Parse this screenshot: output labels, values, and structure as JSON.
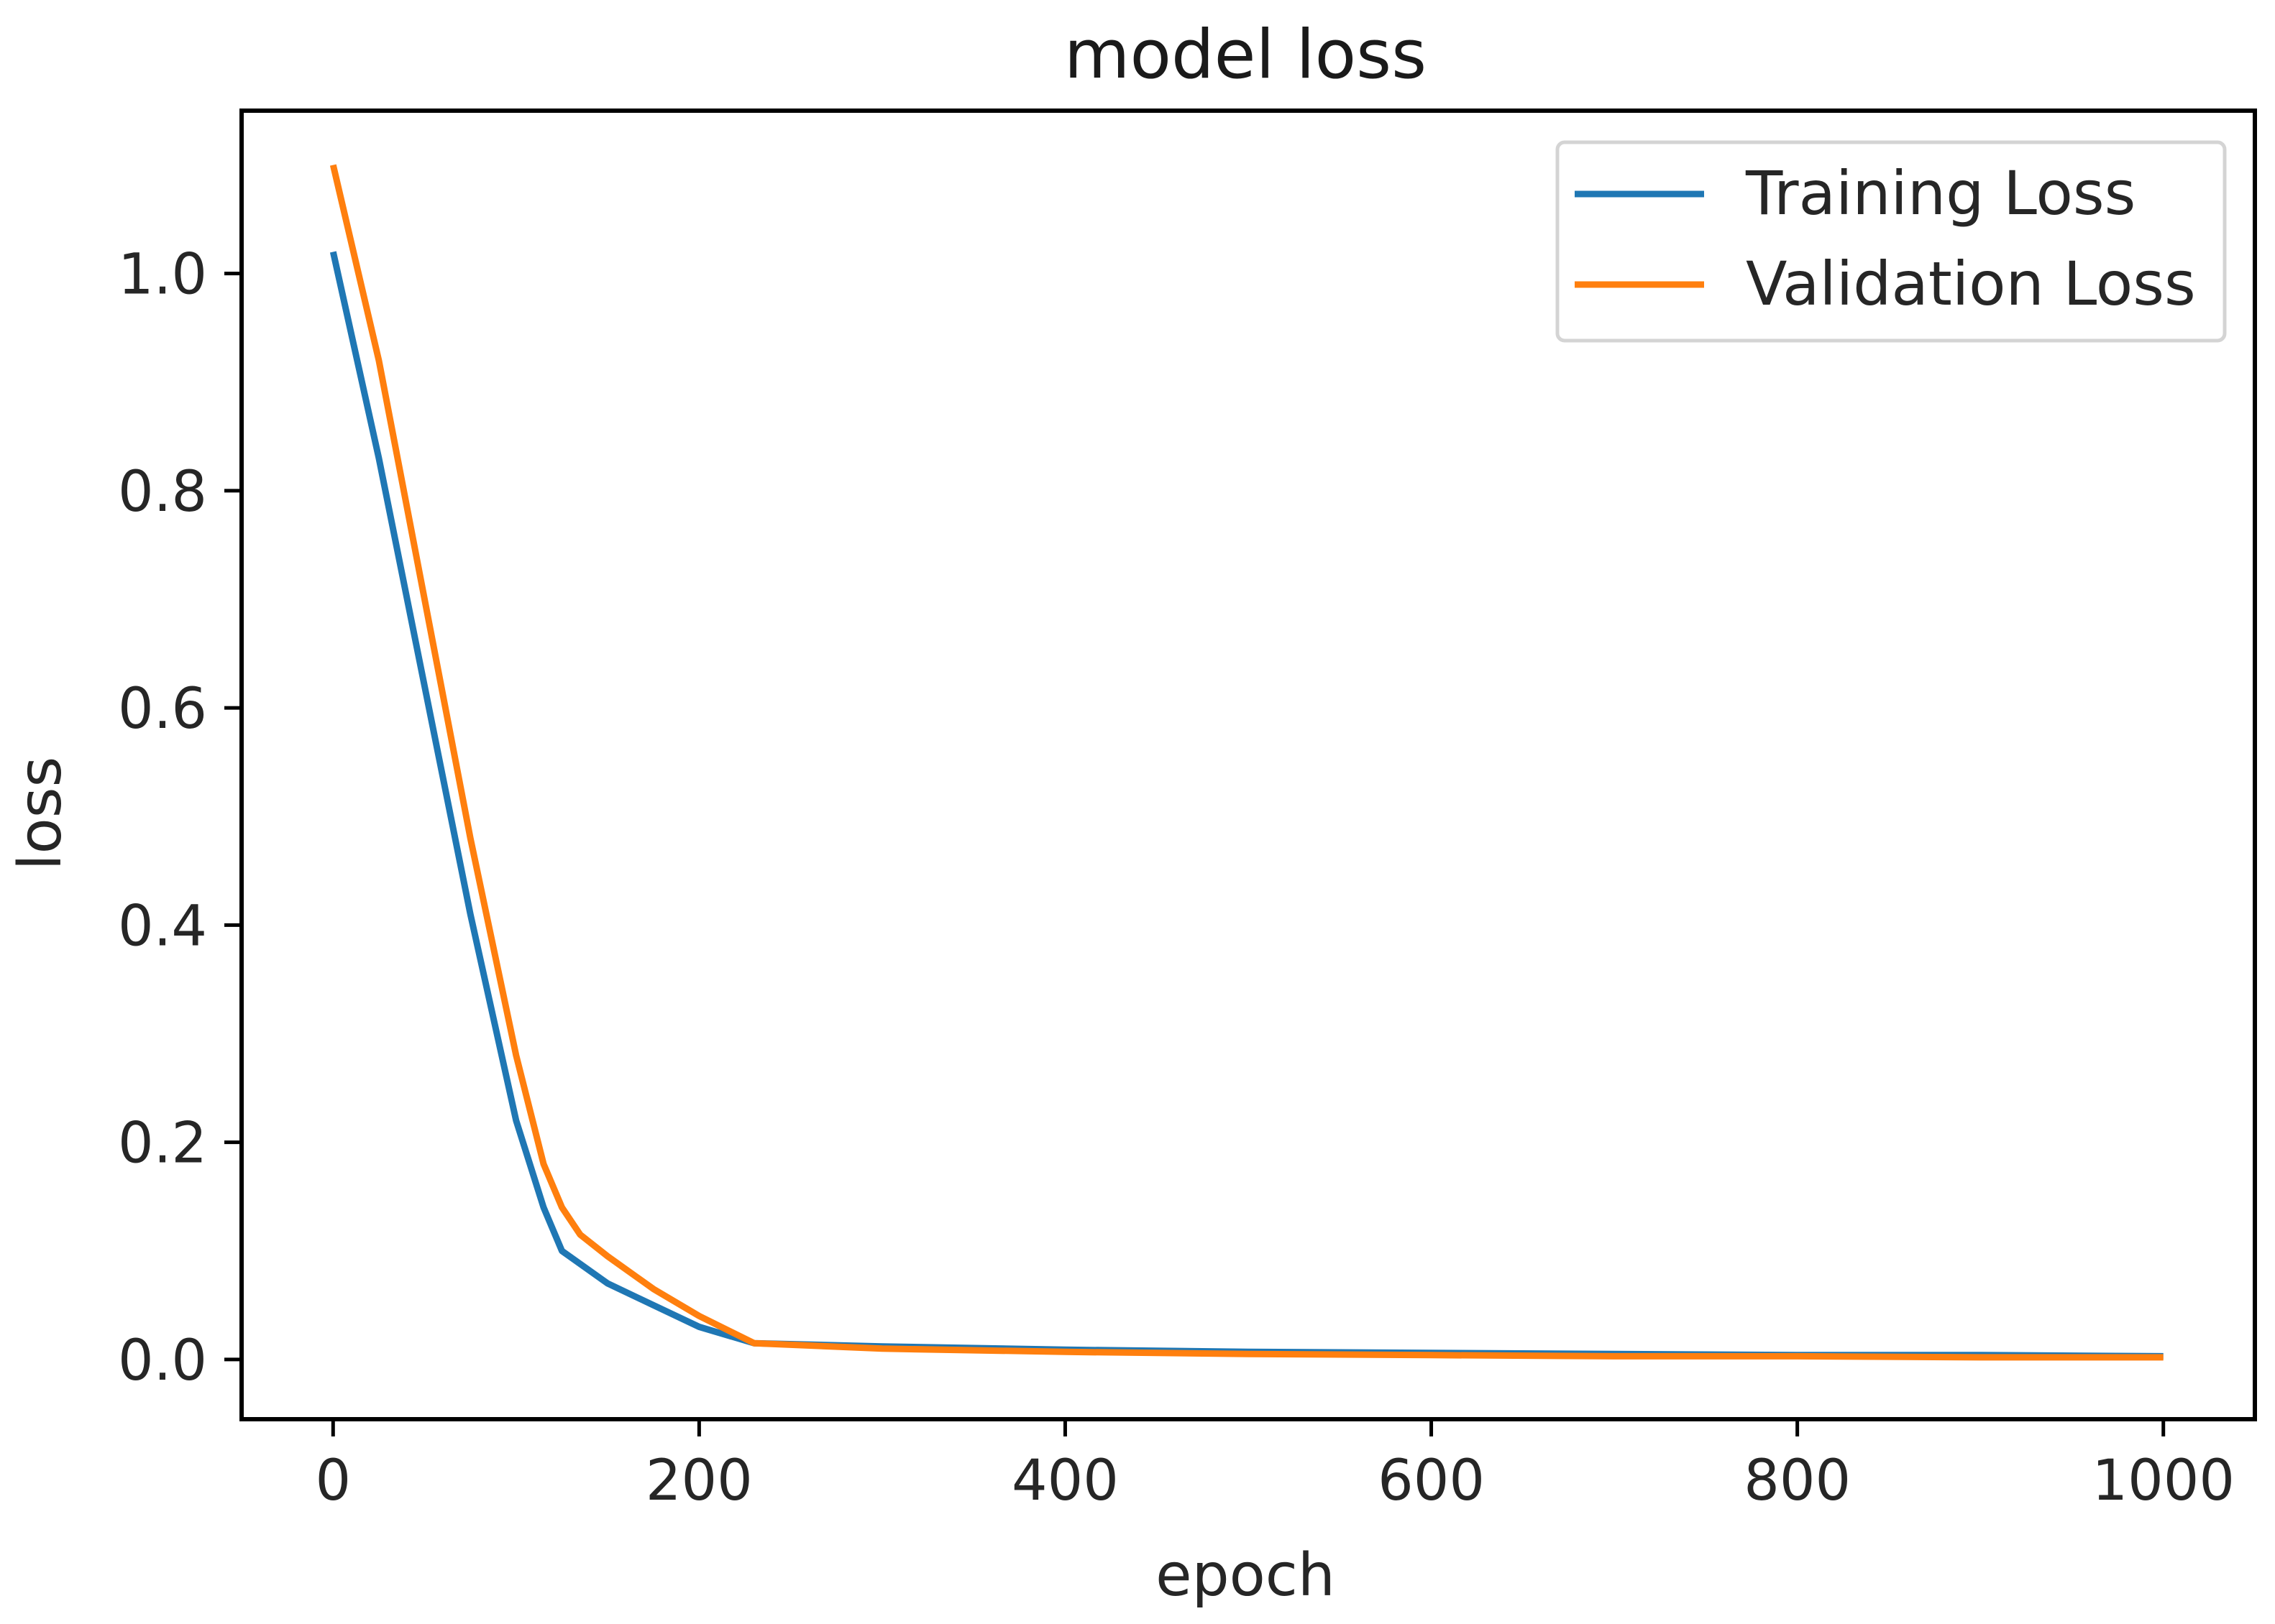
{
  "chart_data": {
    "type": "line",
    "title": "model loss",
    "xlabel": "epoch",
    "ylabel": "loss",
    "xlim": [
      -50,
      1050
    ],
    "ylim": [
      -0.055,
      1.15
    ],
    "xticks": [
      0,
      200,
      400,
      600,
      800,
      1000
    ],
    "yticks": [
      0.0,
      0.2,
      0.4,
      0.6,
      0.8,
      1.0
    ],
    "xtick_labels": [
      "0",
      "200",
      "400",
      "600",
      "800",
      "1000"
    ],
    "ytick_labels": [
      "0.0",
      "0.2",
      "0.4",
      "0.6",
      "0.8",
      "1.0"
    ],
    "grid": false,
    "legend_position": "top-right",
    "series": [
      {
        "name": "Training Loss",
        "color": "#1f77b4",
        "x": [
          0,
          25,
          50,
          75,
          100,
          115,
          125,
          150,
          175,
          200,
          230,
          300,
          400,
          500,
          600,
          700,
          800,
          900,
          1000
        ],
        "y": [
          1.02,
          0.83,
          0.62,
          0.41,
          0.22,
          0.14,
          0.1,
          0.07,
          0.05,
          0.03,
          0.015,
          0.012,
          0.009,
          0.007,
          0.006,
          0.005,
          0.004,
          0.004,
          0.003
        ]
      },
      {
        "name": "Validation Loss",
        "color": "#ff7f0e",
        "x": [
          0,
          25,
          50,
          75,
          100,
          115,
          125,
          135,
          150,
          175,
          200,
          230,
          300,
          400,
          500,
          600,
          700,
          800,
          900,
          1000
        ],
        "y": [
          1.1,
          0.92,
          0.7,
          0.48,
          0.28,
          0.18,
          0.14,
          0.115,
          0.095,
          0.065,
          0.04,
          0.015,
          0.01,
          0.007,
          0.005,
          0.004,
          0.003,
          0.003,
          0.002,
          0.002
        ]
      }
    ]
  }
}
